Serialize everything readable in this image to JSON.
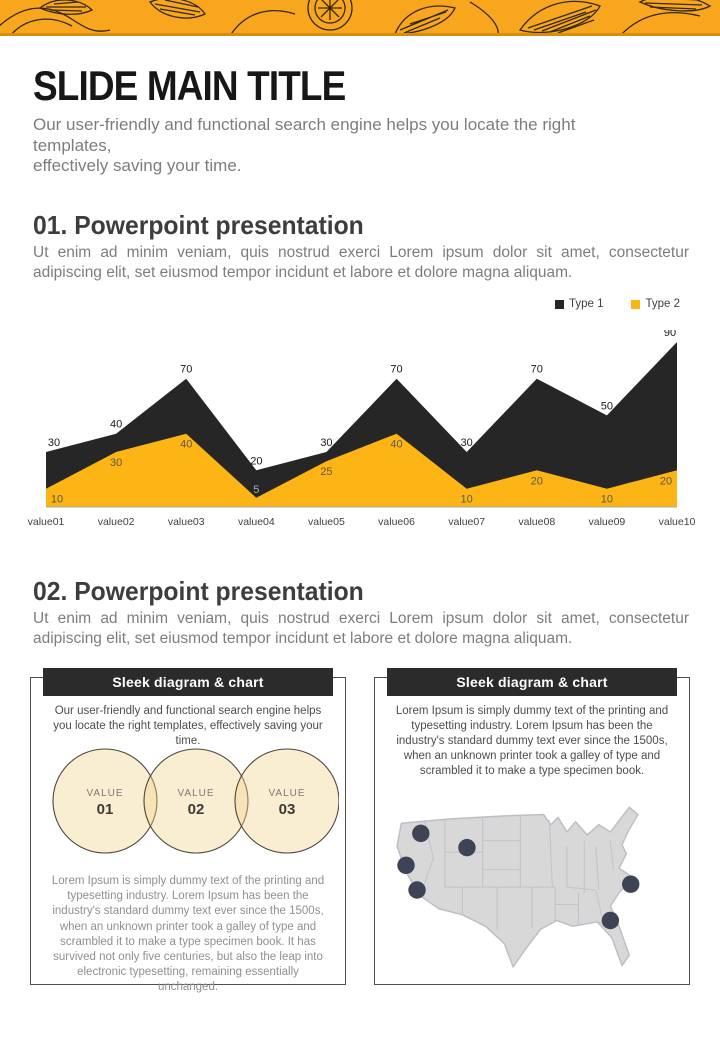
{
  "header": {
    "title": "SLIDE MAIN TITLE",
    "subtitle": "Our user-friendly and functional  search engine helps you locate the right templates,\neffectively saving your time."
  },
  "section1": {
    "heading": "01. Powerpoint presentation",
    "body": "Ut enim ad minim veniam, quis nostrud exerci  Lorem ipsum dolor sit amet, consectetur adipiscing elit, set eiusmod tempor incidunt et labore et dolore magna aliquam."
  },
  "section2": {
    "heading": "02. Powerpoint presentation",
    "body": "Ut enim ad minim veniam, quis nostrud exerci  Lorem ipsum dolor sit amet, consectetur adipiscing elit, set eiusmod tempor incidunt et labore et dolore magna aliquam."
  },
  "chart_data": {
    "type": "area",
    "categories": [
      "value01",
      "value02",
      "value03",
      "value04",
      "value05",
      "value06",
      "value07",
      "value08",
      "value09",
      "value10"
    ],
    "series": [
      {
        "name": "Type 1",
        "color": "#262626",
        "values": [
          30,
          40,
          70,
          20,
          30,
          70,
          30,
          70,
          50,
          90
        ]
      },
      {
        "name": "Type 2",
        "color": "#FCB514",
        "values": [
          10,
          30,
          40,
          5,
          25,
          40,
          10,
          20,
          10,
          20
        ]
      }
    ],
    "title": "",
    "xlabel": "",
    "ylabel": "",
    "ylim": [
      0,
      95
    ],
    "grid": false,
    "legend_position": "top-right",
    "data_labels": true
  },
  "cards": [
    {
      "header": "Sleek diagram & chart",
      "intro": "Our user-friendly and functional search engine helps you locate the right templates, effectively saving your time.",
      "venn_items": [
        {
          "label": "VALUE",
          "number": "01"
        },
        {
          "label": "VALUE",
          "number": "02"
        },
        {
          "label": "VALUE",
          "number": "03"
        }
      ],
      "body": "Lorem Ipsum is simply dummy text of the printing and typesetting industry. Lorem Ipsum has been the industry's standard dummy text ever since the 1500s, when an unknown printer took a galley of type and scrambled it to make a type specimen book. It has survived not only five centuries, but also the leap into electronic typesetting, remaining essentially unchanged."
    },
    {
      "header": "Sleek diagram & chart",
      "intro": "Lorem Ipsum is simply dummy text of the printing and typesetting industry. Lorem Ipsum has been the industry's standard dummy text ever since the 1500s, when an unknown printer took a galley of type and scrambled it to make a type specimen book.",
      "map_markers": [
        {
          "x": 11.7,
          "y": 11.5
        },
        {
          "x": 27.6,
          "y": 16.4
        },
        {
          "x": 6.6,
          "y": 22.5
        },
        {
          "x": 10.4,
          "y": 31.0
        },
        {
          "x": 84.0,
          "y": 29.0
        },
        {
          "x": 77.0,
          "y": 41.5
        }
      ]
    }
  ],
  "colors": {
    "band_yellow": "#F8A61D",
    "chart_black": "#262626",
    "chart_yellow": "#FCB514",
    "marker_navy": "#3E4456",
    "map_gray": "#D8D8D8"
  }
}
